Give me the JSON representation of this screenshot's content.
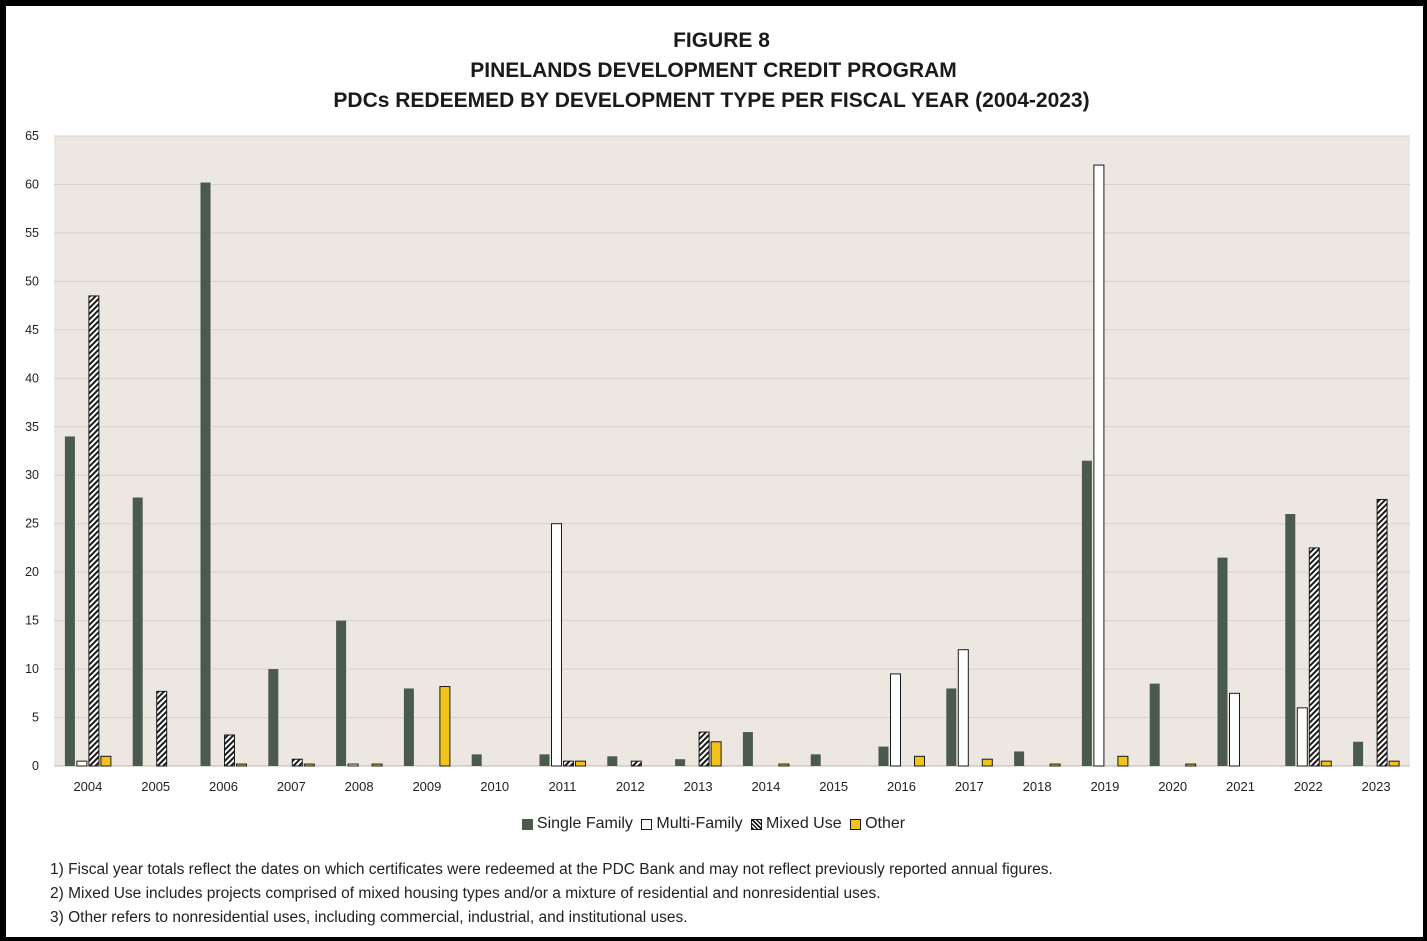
{
  "figure": {
    "title_line1": "FIGURE 8",
    "title_line2": "PINELANDS DEVELOPMENT CREDIT PROGRAM",
    "title_line3": "PDCs REDEEMED BY DEVELOPMENT TYPE PER FISCAL YEAR (2004-2023)"
  },
  "colors": {
    "plot_background": "#ece7e0",
    "gridline": "#d8d2ca",
    "single_family": "#4a5a4c",
    "multi_family": "#ffffff",
    "mixed_use": "#1a1a1a",
    "other": "#f2c31a",
    "outline": "#1a1a1a"
  },
  "chart_data": {
    "type": "bar",
    "categories": [
      "2004",
      "2005",
      "2006",
      "2007",
      "2008",
      "2009",
      "2010",
      "2011",
      "2012",
      "2013",
      "2014",
      "2015",
      "2016",
      "2017",
      "2018",
      "2019",
      "2020",
      "2021",
      "2022",
      "2023"
    ],
    "series": [
      {
        "name": "Single Family",
        "pattern": "solid",
        "values": [
          34,
          27.7,
          60.2,
          10,
          15,
          8,
          1.2,
          1.2,
          1,
          0.7,
          3.5,
          1.2,
          2,
          8,
          1.5,
          31.5,
          8.5,
          21.5,
          26,
          2.5
        ]
      },
      {
        "name": "Multi-Family",
        "pattern": "outline",
        "values": [
          0.5,
          0,
          0,
          0,
          0.2,
          0,
          0,
          25,
          0,
          0,
          0,
          0,
          9.5,
          12,
          0,
          62,
          0,
          7.5,
          6,
          0
        ]
      },
      {
        "name": "Mixed Use",
        "pattern": "hatched",
        "values": [
          48.5,
          7.7,
          3.2,
          0.7,
          0,
          0,
          0,
          0.5,
          0.5,
          3.5,
          0,
          0,
          0,
          0,
          0,
          0,
          0,
          0,
          22.5,
          27.5
        ]
      },
      {
        "name": "Other",
        "pattern": "solid",
        "values": [
          1,
          0,
          0.2,
          0.2,
          0.2,
          8.2,
          0,
          0.5,
          0,
          2.5,
          0.2,
          0,
          1,
          0.7,
          0.2,
          1,
          0.2,
          0,
          0.5,
          0.5
        ]
      }
    ],
    "xlabel": "",
    "ylabel": "",
    "ylim": [
      0,
      65
    ],
    "yticks": [
      0,
      5,
      10,
      15,
      20,
      25,
      30,
      35,
      40,
      45,
      50,
      55,
      60,
      65
    ],
    "grid": true,
    "legend_position": "bottom-center"
  },
  "notes": [
    "1) Fiscal year totals reflect the dates on which certificates were redeemed at the PDC Bank and may not reflect previously reported annual figures.",
    "2) Mixed Use includes projects comprised of mixed housing types and/or a mixture of residential and nonresidential uses.",
    "3) Other refers to nonresidential uses, including commercial, industrial, and institutional uses."
  ]
}
